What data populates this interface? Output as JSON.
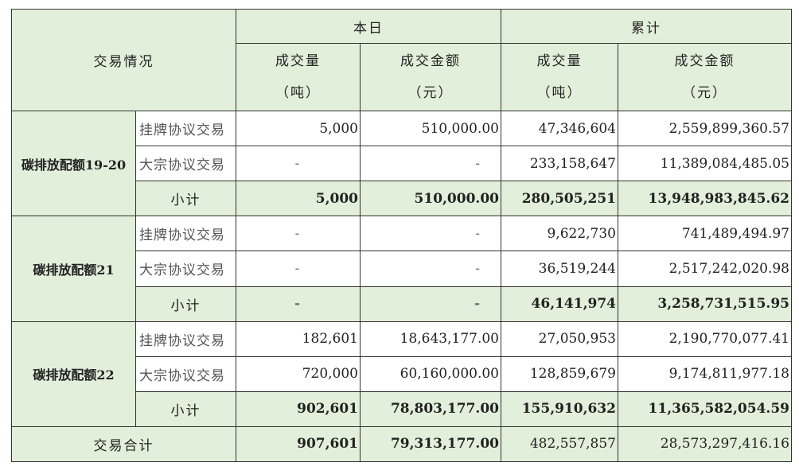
{
  "headers": {
    "main": "交易情况",
    "today": "本日",
    "cumulative": "累计",
    "volume": "成交量",
    "volume_unit": "（吨）",
    "amount": "成交金额",
    "amount_unit": "（元）"
  },
  "groups": [
    {
      "name": "碳排放配额19-20",
      "rows": [
        {
          "type": "挂牌协议交易",
          "today_vol": "5,000",
          "today_amt": "510,000.00",
          "cum_vol": "47,346,604",
          "cum_amt": "2,559,899,360.57"
        },
        {
          "type": "大宗协议交易",
          "today_vol": "-",
          "today_amt": "-",
          "cum_vol": "233,158,647",
          "cum_amt": "11,389,084,485.05"
        }
      ],
      "subtotal": {
        "label": "小计",
        "today_vol": "5,000",
        "today_amt": "510,000.00",
        "cum_vol": "280,505,251",
        "cum_amt": "13,948,983,845.62"
      }
    },
    {
      "name": "碳排放配额21",
      "rows": [
        {
          "type": "挂牌协议交易",
          "today_vol": "-",
          "today_amt": "-",
          "cum_vol": "9,622,730",
          "cum_amt": "741,489,494.97"
        },
        {
          "type": "大宗协议交易",
          "today_vol": "-",
          "today_amt": "-",
          "cum_vol": "36,519,244",
          "cum_amt": "2,517,242,020.98"
        }
      ],
      "subtotal": {
        "label": "小计",
        "today_vol": "-",
        "today_amt": "-",
        "cum_vol": "46,141,974",
        "cum_amt": "3,258,731,515.95"
      }
    },
    {
      "name": "碳排放配额22",
      "rows": [
        {
          "type": "挂牌协议交易",
          "today_vol": "182,601",
          "today_amt": "18,643,177.00",
          "cum_vol": "27,050,953",
          "cum_amt": "2,190,770,077.41"
        },
        {
          "type": "大宗协议交易",
          "today_vol": "720,000",
          "today_amt": "60,160,000.00",
          "cum_vol": "128,859,679",
          "cum_amt": "9,174,811,977.18"
        }
      ],
      "subtotal": {
        "label": "小计",
        "today_vol": "902,601",
        "today_amt": "78,803,177.00",
        "cum_vol": "155,910,632",
        "cum_amt": "11,365,582,054.59"
      }
    }
  ],
  "total": {
    "label": "交易合计",
    "today_vol": "907,601",
    "today_amt": "79,313,177.00",
    "cum_vol": "482,557,857",
    "cum_amt": "28,573,297,416.16"
  }
}
